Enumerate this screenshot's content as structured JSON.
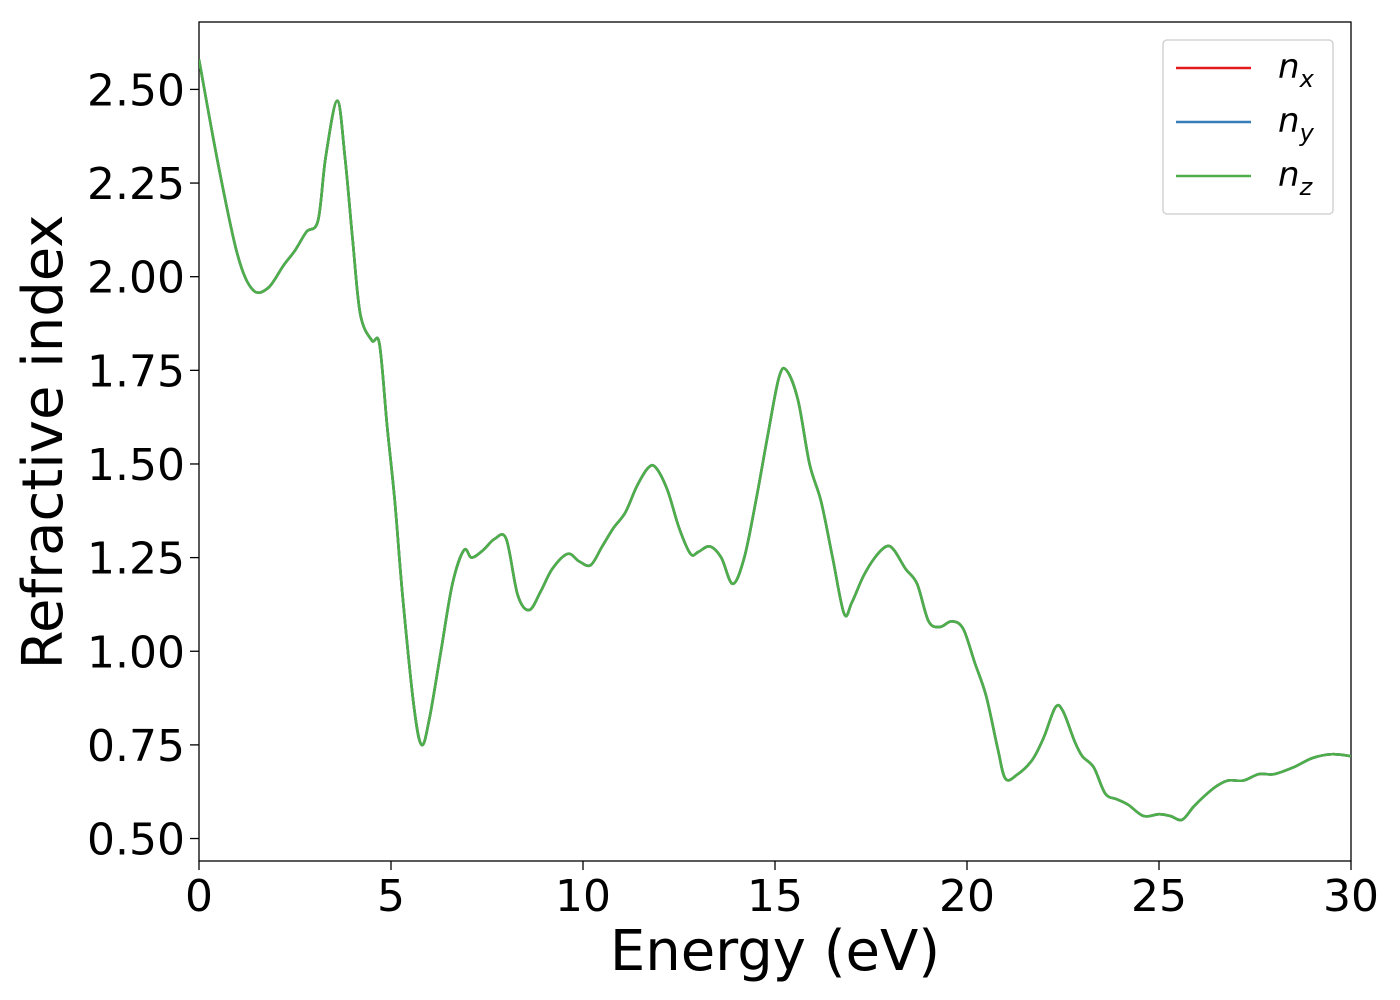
{
  "chart_data": {
    "type": "line",
    "xlabel": "Energy (eV)",
    "ylabel": "Refractive index",
    "xlim": [
      0,
      30
    ],
    "ylim": [
      0.44,
      2.68
    ],
    "xticks": [
      0,
      5,
      10,
      15,
      20,
      25,
      30
    ],
    "xtick_labels": [
      "0",
      "5",
      "10",
      "15",
      "20",
      "25",
      "30"
    ],
    "yticks": [
      0.5,
      0.75,
      1.0,
      1.25,
      1.5,
      1.75,
      2.0,
      2.25,
      2.5
    ],
    "ytick_labels": [
      "0.50",
      "0.75",
      "1.00",
      "1.25",
      "1.50",
      "1.75",
      "2.00",
      "2.25",
      "2.50"
    ],
    "grid": false,
    "legend_position": "top-right",
    "x": [
      0,
      0.5,
      1.0,
      1.4,
      1.8,
      2.2,
      2.5,
      2.8,
      3.1,
      3.3,
      3.6,
      3.8,
      4.0,
      4.2,
      4.5,
      4.7,
      4.9,
      5.1,
      5.3,
      5.6,
      5.8,
      6.0,
      6.3,
      6.6,
      6.9,
      7.1,
      7.4,
      7.7,
      8.0,
      8.3,
      8.6,
      8.9,
      9.2,
      9.6,
      9.9,
      10.2,
      10.5,
      10.8,
      11.1,
      11.4,
      11.7,
      11.9,
      12.2,
      12.5,
      12.8,
      13.0,
      13.3,
      13.6,
      13.9,
      14.2,
      14.5,
      14.8,
      15.1,
      15.3,
      15.6,
      15.9,
      16.2,
      16.5,
      16.8,
      17.0,
      17.3,
      17.6,
      17.9,
      18.1,
      18.4,
      18.7,
      19.0,
      19.3,
      19.6,
      19.9,
      20.2,
      20.5,
      20.8,
      21.0,
      21.3,
      21.7,
      22.0,
      22.3,
      22.5,
      22.8,
      23.0,
      23.3,
      23.6,
      23.9,
      24.2,
      24.6,
      25.0,
      25.3,
      25.6,
      25.9,
      26.2,
      26.5,
      26.8,
      27.2,
      27.6,
      28.0,
      28.5,
      29.0,
      29.5,
      30.0
    ],
    "series": [
      {
        "name": "x",
        "color": "#e41a1c",
        "values": [
          2.58,
          2.3,
          2.06,
          1.965,
          1.97,
          2.03,
          2.07,
          2.12,
          2.15,
          2.32,
          2.47,
          2.32,
          2.1,
          1.9,
          1.83,
          1.82,
          1.6,
          1.4,
          1.15,
          0.85,
          0.75,
          0.82,
          1.0,
          1.18,
          1.27,
          1.25,
          1.27,
          1.3,
          1.3,
          1.15,
          1.11,
          1.16,
          1.22,
          1.26,
          1.24,
          1.23,
          1.28,
          1.33,
          1.37,
          1.44,
          1.49,
          1.49,
          1.43,
          1.33,
          1.26,
          1.265,
          1.28,
          1.25,
          1.18,
          1.25,
          1.4,
          1.57,
          1.73,
          1.75,
          1.67,
          1.5,
          1.4,
          1.25,
          1.1,
          1.13,
          1.2,
          1.25,
          1.28,
          1.27,
          1.22,
          1.18,
          1.08,
          1.065,
          1.08,
          1.06,
          0.97,
          0.88,
          0.74,
          0.66,
          0.67,
          0.71,
          0.77,
          0.85,
          0.84,
          0.76,
          0.72,
          0.69,
          0.62,
          0.605,
          0.59,
          0.56,
          0.565,
          0.56,
          0.55,
          0.585,
          0.615,
          0.64,
          0.655,
          0.655,
          0.672,
          0.672,
          0.69,
          0.715,
          0.725,
          0.72
        ]
      },
      {
        "name": "y",
        "color": "#377eb8",
        "values": [
          2.58,
          2.3,
          2.06,
          1.965,
          1.97,
          2.03,
          2.07,
          2.12,
          2.15,
          2.32,
          2.47,
          2.32,
          2.1,
          1.9,
          1.83,
          1.82,
          1.6,
          1.4,
          1.15,
          0.85,
          0.75,
          0.82,
          1.0,
          1.18,
          1.27,
          1.25,
          1.27,
          1.3,
          1.3,
          1.15,
          1.11,
          1.16,
          1.22,
          1.26,
          1.24,
          1.23,
          1.28,
          1.33,
          1.37,
          1.44,
          1.49,
          1.49,
          1.43,
          1.33,
          1.26,
          1.265,
          1.28,
          1.25,
          1.18,
          1.25,
          1.4,
          1.57,
          1.73,
          1.75,
          1.67,
          1.5,
          1.4,
          1.25,
          1.1,
          1.13,
          1.2,
          1.25,
          1.28,
          1.27,
          1.22,
          1.18,
          1.08,
          1.065,
          1.08,
          1.06,
          0.97,
          0.88,
          0.74,
          0.66,
          0.67,
          0.71,
          0.77,
          0.85,
          0.84,
          0.76,
          0.72,
          0.69,
          0.62,
          0.605,
          0.59,
          0.56,
          0.565,
          0.56,
          0.55,
          0.585,
          0.615,
          0.64,
          0.655,
          0.655,
          0.672,
          0.672,
          0.69,
          0.715,
          0.725,
          0.72
        ]
      },
      {
        "name": "z",
        "color": "#4daf4a",
        "values": [
          2.58,
          2.3,
          2.06,
          1.965,
          1.97,
          2.03,
          2.07,
          2.12,
          2.15,
          2.32,
          2.47,
          2.32,
          2.1,
          1.9,
          1.83,
          1.82,
          1.6,
          1.4,
          1.15,
          0.85,
          0.75,
          0.82,
          1.0,
          1.18,
          1.27,
          1.25,
          1.27,
          1.3,
          1.3,
          1.15,
          1.11,
          1.16,
          1.22,
          1.26,
          1.24,
          1.23,
          1.28,
          1.33,
          1.37,
          1.44,
          1.49,
          1.49,
          1.43,
          1.33,
          1.26,
          1.265,
          1.28,
          1.25,
          1.18,
          1.25,
          1.4,
          1.57,
          1.73,
          1.75,
          1.67,
          1.5,
          1.4,
          1.25,
          1.1,
          1.13,
          1.2,
          1.25,
          1.28,
          1.27,
          1.22,
          1.18,
          1.08,
          1.065,
          1.08,
          1.06,
          0.97,
          0.88,
          0.74,
          0.66,
          0.67,
          0.71,
          0.77,
          0.85,
          0.84,
          0.76,
          0.72,
          0.69,
          0.62,
          0.605,
          0.59,
          0.56,
          0.565,
          0.56,
          0.55,
          0.585,
          0.615,
          0.64,
          0.655,
          0.655,
          0.672,
          0.672,
          0.69,
          0.715,
          0.725,
          0.72
        ]
      }
    ],
    "legend": [
      {
        "base": "n",
        "sub": "x",
        "color": "#e41a1c"
      },
      {
        "base": "n",
        "sub": "y",
        "color": "#377eb8"
      },
      {
        "base": "n",
        "sub": "z",
        "color": "#4daf4a"
      }
    ]
  }
}
